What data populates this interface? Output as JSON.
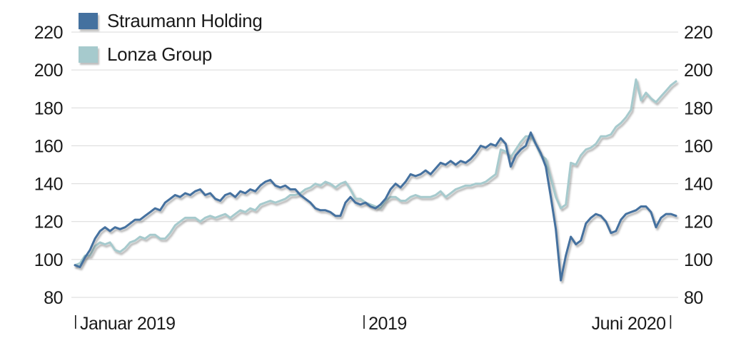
{
  "chart_data": {
    "type": "line",
    "title": "",
    "grid": true,
    "legend_position": "top-left",
    "colors": {
      "grid": "#d9d9d9",
      "axis_text": "#1a1a1a",
      "background": "#ffffff"
    },
    "y_axis": {
      "min": 80,
      "max": 220,
      "ticks": [
        220,
        200,
        180,
        160,
        140,
        120,
        100,
        80
      ],
      "sides": [
        "left",
        "right"
      ]
    },
    "x_axis": {
      "ticks": [
        {
          "label": "Januar 2019",
          "pos": 0.0,
          "label_side": "right"
        },
        {
          "label": "2019",
          "pos": 0.48,
          "label_side": "right"
        },
        {
          "label": "Juni 2020",
          "pos": 0.99,
          "label_side": "left"
        }
      ]
    },
    "series": [
      {
        "name": "Straumann Holding",
        "color": "#44719f",
        "values": [
          97,
          96,
          101,
          105,
          111,
          115,
          117,
          115,
          117,
          116,
          117,
          119,
          121,
          121,
          123,
          125,
          127,
          126,
          130,
          132,
          134,
          133,
          135,
          134,
          136,
          137,
          134,
          135,
          132,
          131,
          134,
          135,
          133,
          136,
          135,
          137,
          136,
          139,
          141,
          142,
          139,
          138,
          139,
          137,
          137,
          134,
          132,
          130,
          127,
          126,
          126,
          125,
          123,
          123,
          130,
          133,
          130,
          129,
          130,
          128,
          127,
          129,
          132,
          137,
          140,
          138,
          141,
          145,
          144,
          145,
          147,
          145,
          148,
          151,
          150,
          152,
          150,
          152,
          151,
          153,
          156,
          160,
          159,
          161,
          160,
          164,
          161,
          149,
          155,
          158,
          160,
          167,
          161,
          156,
          149,
          133,
          116,
          89,
          102,
          112,
          108,
          110,
          119,
          122,
          124,
          123,
          120,
          114,
          115,
          121,
          124,
          125,
          126,
          128,
          128,
          125,
          117,
          122,
          124,
          124,
          123
        ]
      },
      {
        "name": "Lonza Group",
        "color": "#a6cacd",
        "values": [
          97,
          98,
          102,
          102,
          107,
          109,
          108,
          109,
          105,
          104,
          106,
          109,
          110,
          112,
          111,
          113,
          113,
          111,
          111,
          114,
          118,
          120,
          122,
          122,
          122,
          120,
          122,
          123,
          122,
          123,
          124,
          122,
          124,
          126,
          125,
          127,
          126,
          129,
          130,
          131,
          130,
          131,
          132,
          134,
          134,
          135,
          137,
          138,
          140,
          139,
          141,
          140,
          138,
          140,
          141,
          137,
          132,
          132,
          130,
          129,
          128,
          127,
          131,
          133,
          133,
          131,
          131,
          133,
          134,
          133,
          133,
          133,
          134,
          136,
          133,
          135,
          137,
          138,
          139,
          139,
          140,
          140,
          141,
          143,
          145,
          158,
          157,
          154,
          158,
          162,
          165,
          165,
          161,
          155,
          153,
          143,
          133,
          127,
          129,
          151,
          150,
          155,
          158,
          159,
          161,
          165,
          165,
          166,
          170,
          172,
          175,
          179,
          195,
          184,
          188,
          185,
          183,
          186,
          189,
          192,
          194
        ]
      }
    ]
  }
}
